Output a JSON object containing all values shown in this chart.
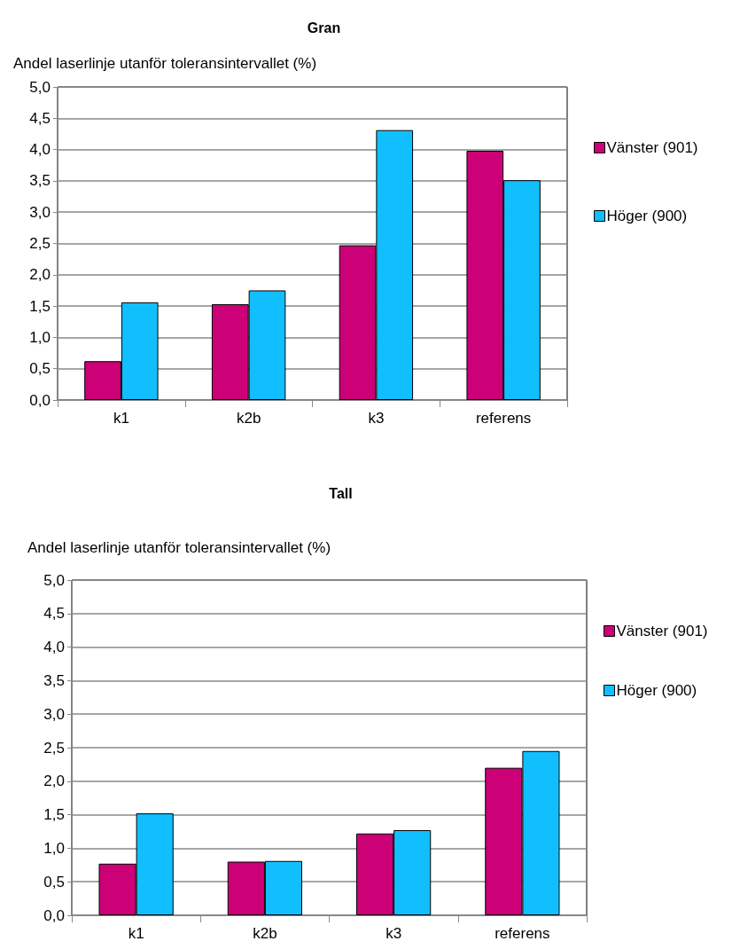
{
  "chart_data": [
    {
      "type": "bar",
      "title": "Gran",
      "ylabel": "Andel laserlinje utanför toleransintervallet (%)",
      "categories": [
        "k1",
        "k2b",
        "k3",
        "referens"
      ],
      "series": [
        {
          "name": "Vänster (901)",
          "color": "#cc0077",
          "values": [
            0.62,
            1.53,
            2.47,
            3.98
          ]
        },
        {
          "name": "Höger (900)",
          "color": "#11bfff",
          "values": [
            1.56,
            1.75,
            4.31,
            3.51
          ]
        }
      ],
      "ylim": [
        0,
        5
      ],
      "yticks": [
        {
          "value": 0,
          "label": "0,0"
        },
        {
          "value": 0.5,
          "label": "0,5"
        },
        {
          "value": 1,
          "label": "1,0"
        },
        {
          "value": 1.5,
          "label": "1,5"
        },
        {
          "value": 2,
          "label": "2,0"
        },
        {
          "value": 2.5,
          "label": "2,5"
        },
        {
          "value": 3,
          "label": "3,0"
        },
        {
          "value": 3.5,
          "label": "3,5"
        },
        {
          "value": 4,
          "label": "4,0"
        },
        {
          "value": 4.5,
          "label": "4,5"
        },
        {
          "value": 5,
          "label": "5,0"
        }
      ],
      "grid": "y",
      "legend": "right"
    },
    {
      "type": "bar",
      "title": "Tall",
      "ylabel": "Andel laserlinje utanför toleransintervallet (%)",
      "categories": [
        "k1",
        "k2b",
        "k3",
        "referens"
      ],
      "series": [
        {
          "name": "Vänster (901)",
          "color": "#cc0077",
          "values": [
            0.77,
            0.8,
            1.22,
            2.2
          ]
        },
        {
          "name": "Höger (900)",
          "color": "#11bfff",
          "values": [
            1.52,
            0.81,
            1.27,
            2.45
          ]
        }
      ],
      "ylim": [
        0,
        5
      ],
      "yticks": [
        {
          "value": 0,
          "label": "0,0"
        },
        {
          "value": 0.5,
          "label": "0,5"
        },
        {
          "value": 1,
          "label": "1,0"
        },
        {
          "value": 1.5,
          "label": "1,5"
        },
        {
          "value": 2,
          "label": "2,0"
        },
        {
          "value": 2.5,
          "label": "2,5"
        },
        {
          "value": 3,
          "label": "3,0"
        },
        {
          "value": 3.5,
          "label": "3,5"
        },
        {
          "value": 4,
          "label": "4,0"
        },
        {
          "value": 4.5,
          "label": "4,5"
        },
        {
          "value": 5,
          "label": "5,0"
        }
      ],
      "grid": "y",
      "legend": "right"
    }
  ]
}
